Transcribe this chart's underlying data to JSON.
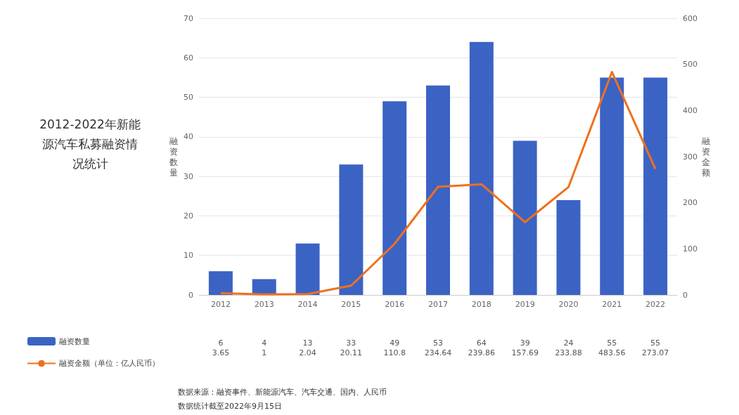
{
  "chart_data": {
    "type": "bar",
    "title": "2012-2022年新能源汽车私募融资情况统计",
    "ylabel": "融资数量",
    "y2label": "融资金额",
    "categories": [
      "2012",
      "2013",
      "2014",
      "2015",
      "2016",
      "2017",
      "2018",
      "2019",
      "2020",
      "2021",
      "2022"
    ],
    "series": [
      {
        "name": "融资数量",
        "color": "#3b63c4",
        "values": [
          6,
          4,
          13,
          33,
          49,
          53,
          64,
          39,
          24,
          55,
          55
        ]
      },
      {
        "name": "融资金额（单位：亿人民币）",
        "type": "line",
        "axis": "y2",
        "color": "#f0701e",
        "values": [
          3.65,
          1,
          2.04,
          20.11,
          110.8,
          234.64,
          239.86,
          157.69,
          233.88,
          483.56,
          273.07
        ]
      }
    ],
    "ylim": [
      0,
      70
    ],
    "yticks": [
      0,
      10,
      20,
      30,
      40,
      50,
      60,
      70
    ],
    "y2lim": [
      0,
      600
    ],
    "y2ticks": [
      0,
      100,
      200,
      300,
      400,
      500,
      600
    ],
    "grid": "y",
    "legend": "bottom left",
    "marker": "none",
    "line_style": "solid",
    "data_labels": true,
    "annotations": [
      "数据来源：融资事件、新能源汽车、汽车交通、国内、人民币",
      "数据统计截至2022年9月15日"
    ]
  }
}
